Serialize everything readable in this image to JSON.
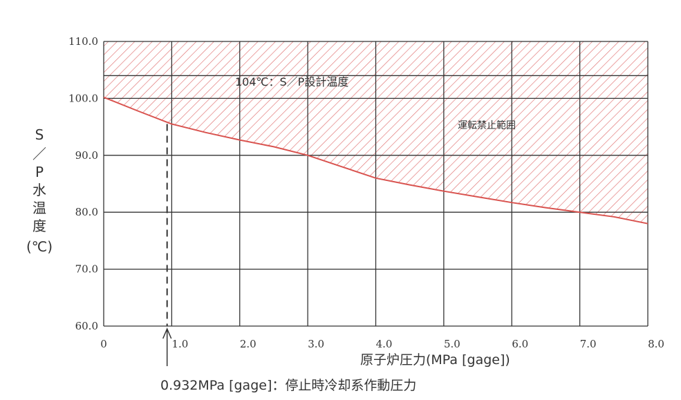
{
  "chart_data": {
    "type": "area",
    "title": "",
    "xlabel": "原子炉圧力(MPa [gage])",
    "ylabel": [
      "S",
      "／",
      "P",
      "水",
      "温",
      "度",
      "(℃)"
    ],
    "xlim": [
      0,
      8.0
    ],
    "ylim": [
      60.0,
      110.0
    ],
    "x_ticks": [
      0,
      1.0,
      2.0,
      3.0,
      4.0,
      5.0,
      6.0,
      7.0,
      8.0
    ],
    "x_tick_labels": [
      "0",
      "1.0",
      "2.0",
      "3.0",
      "4.0",
      "5.0",
      "6.0",
      "7.0",
      "8.0"
    ],
    "y_ticks": [
      60.0,
      70.0,
      80.0,
      90.0,
      100.0,
      110.0
    ],
    "y_tick_labels": [
      "60.0",
      "70.0",
      "80.0",
      "90.0",
      "100.0",
      "110.0"
    ],
    "grid": true,
    "series": [
      {
        "color": "#d9534f",
        "x": [
          0,
          0.5,
          1.0,
          1.5,
          2.0,
          2.5,
          3.0,
          3.5,
          4.0,
          4.5,
          5.0,
          5.5,
          6.0,
          6.5,
          7.0,
          7.5,
          8.0
        ],
        "y": [
          100.2,
          97.8,
          95.5,
          94.0,
          92.7,
          91.5,
          90.0,
          88.0,
          86.0,
          84.8,
          83.7,
          82.7,
          81.7,
          80.8,
          80.0,
          79.2,
          78.0
        ]
      }
    ],
    "hline": {
      "y": 104.0,
      "label": "104℃：S／P設計温度"
    },
    "region_label": "運転禁止範囲",
    "vline": {
      "x": 0.932,
      "label": "0.932MPa [gage]：停止時冷却系作動圧力"
    }
  }
}
